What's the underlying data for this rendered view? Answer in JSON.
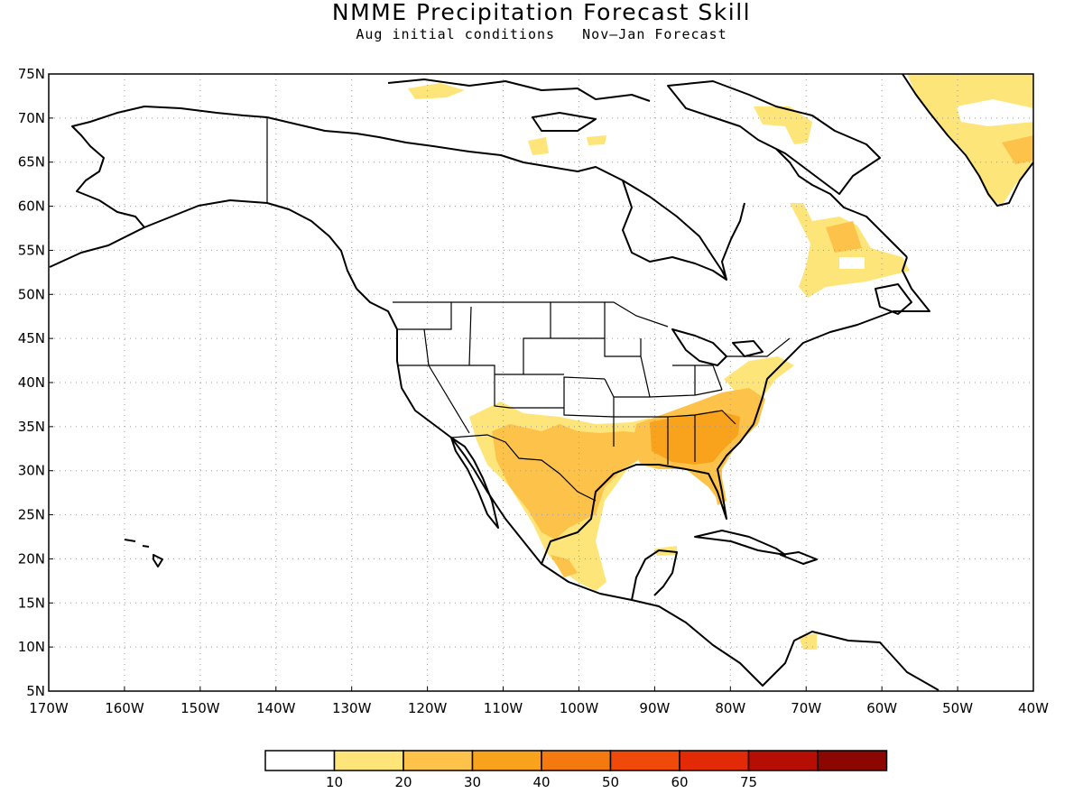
{
  "title": "NMME Precipitation Forecast Skill",
  "subtitle": "Aug initial conditions   Nov–Jan Forecast",
  "map": {
    "lat_labels": [
      "75N",
      "70N",
      "65N",
      "60N",
      "55N",
      "50N",
      "45N",
      "40N",
      "35N",
      "30N",
      "25N",
      "20N",
      "15N",
      "10N",
      "5N"
    ],
    "lon_labels": [
      "170W",
      "160W",
      "150W",
      "140W",
      "130W",
      "120W",
      "110W",
      "100W",
      "90W",
      "80W",
      "70W",
      "60W",
      "50W",
      "40W"
    ],
    "lat_range": [
      5,
      75
    ],
    "lon_range": [
      -170,
      -40
    ],
    "grid": "dotted"
  },
  "legend": {
    "bins": [
      {
        "color": "#ffffff",
        "label": ""
      },
      {
        "color": "#fee57a",
        "label": "10"
      },
      {
        "color": "#fcc24a",
        "label": "20"
      },
      {
        "color": "#f9a21c",
        "label": "30"
      },
      {
        "color": "#f47a10",
        "label": "40"
      },
      {
        "color": "#f04a0a",
        "label": "50"
      },
      {
        "color": "#e32a06",
        "label": "60"
      },
      {
        "color": "#b60e04",
        "label": "75"
      },
      {
        "color": "#8c0602",
        "label": ""
      }
    ]
  },
  "colors": {
    "skill_10_20": "#fee57a",
    "skill_20_30": "#fcc24a",
    "skill_30_40": "#f9a21c"
  }
}
